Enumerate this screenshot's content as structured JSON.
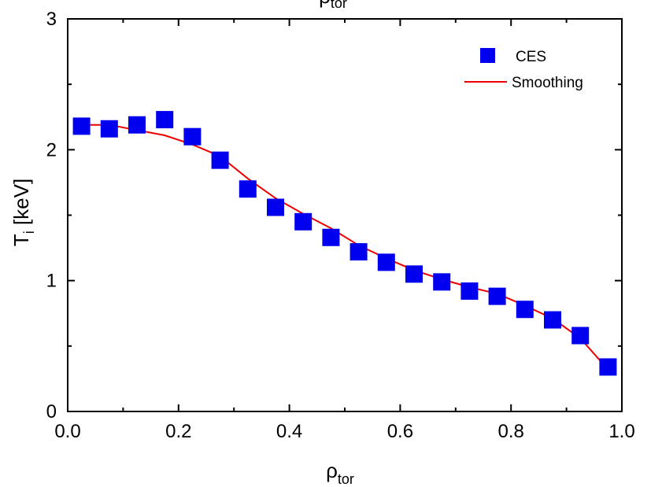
{
  "chart_data": {
    "type": "scatter",
    "xlabel": {
      "main": "ρ",
      "sub": "tor"
    },
    "ylabel": {
      "main": "T",
      "sub": "i",
      "suffix": " [keV]"
    },
    "top_label": {
      "main": "ρ",
      "sub": "tor"
    },
    "xlim": [
      0.0,
      1.0
    ],
    "ylim": [
      0,
      3
    ],
    "x_ticks": [
      "0.0",
      "0.2",
      "0.4",
      "0.6",
      "0.8",
      "1.0"
    ],
    "y_ticks": [
      "0",
      "1",
      "2",
      "3"
    ],
    "grid": false,
    "legend": {
      "position": "top-right"
    },
    "series": [
      {
        "name": "CES",
        "kind": "scatter",
        "marker": "square",
        "color": "#0000ee",
        "x": [
          0.025,
          0.075,
          0.125,
          0.175,
          0.225,
          0.275,
          0.325,
          0.375,
          0.425,
          0.475,
          0.525,
          0.575,
          0.625,
          0.675,
          0.725,
          0.775,
          0.825,
          0.875,
          0.925,
          0.975
        ],
        "y": [
          2.18,
          2.16,
          2.19,
          2.23,
          2.1,
          1.92,
          1.7,
          1.56,
          1.45,
          1.33,
          1.22,
          1.14,
          1.05,
          0.99,
          0.92,
          0.88,
          0.78,
          0.7,
          0.58,
          0.34
        ]
      },
      {
        "name": "Smoothing",
        "kind": "line",
        "color": "#ee0000",
        "x": [
          0.025,
          0.075,
          0.125,
          0.175,
          0.225,
          0.275,
          0.325,
          0.375,
          0.425,
          0.475,
          0.525,
          0.575,
          0.625,
          0.675,
          0.725,
          0.775,
          0.825,
          0.875,
          0.925,
          0.975
        ],
        "y": [
          2.19,
          2.19,
          2.15,
          2.11,
          2.04,
          1.95,
          1.78,
          1.63,
          1.51,
          1.4,
          1.27,
          1.17,
          1.08,
          1.01,
          0.95,
          0.9,
          0.81,
          0.71,
          0.56,
          0.32
        ]
      }
    ]
  }
}
